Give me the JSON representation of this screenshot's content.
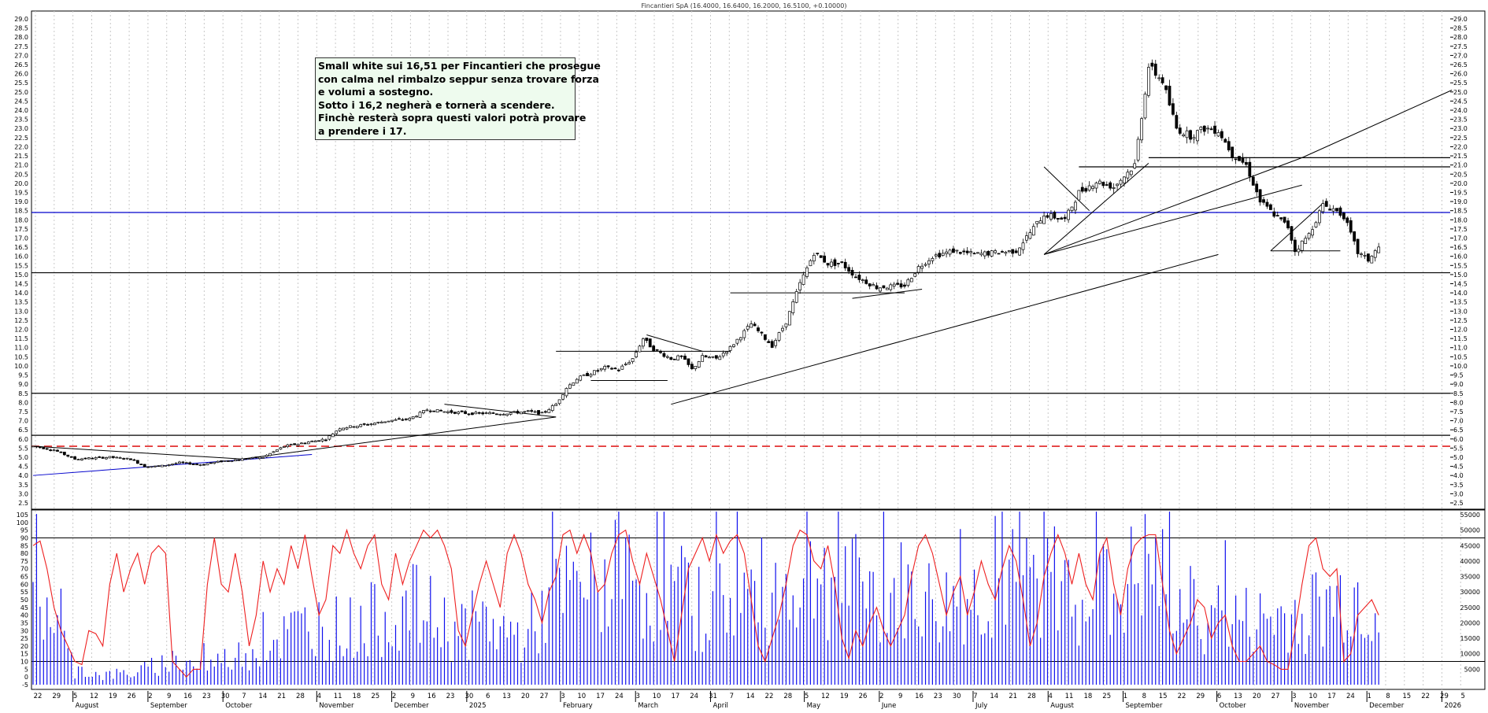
{
  "chart_data": {
    "type": "candlestick",
    "title": "Fincantieri SpA (16.4000, 16.6400, 16.2000, 16.5100, +0.10000)",
    "annotation_lines": [
      "Small white sui 16,51 per Fincantieri che prosegue",
      "con calma nel rimbalzo seppur senza trovare forza",
      "e volumi a sostegno.",
      "Sotto i 16,2 negherà e tornerà a scendere.",
      "Finchè resterà sopra questi valori potrà provare",
      "a prendere i 17."
    ],
    "price_axis": {
      "min": 2.5,
      "max": 29.0,
      "step": 0.5
    },
    "oscillator_axis": {
      "min": -5,
      "max": 105,
      "step": 5,
      "levels": [
        10,
        90
      ]
    },
    "volume_axis": {
      "min": 0,
      "max": 55000,
      "ticks": [
        5000,
        10000,
        15000,
        20000,
        25000,
        30000,
        35000,
        40000,
        45000,
        50000,
        55000
      ]
    },
    "x_day_labels": [
      "22",
      "29",
      "5",
      "12",
      "19",
      "26",
      "2",
      "9",
      "16",
      "23",
      "30",
      "7",
      "14",
      "21",
      "28",
      "4",
      "11",
      "18",
      "25",
      "2",
      "9",
      "16",
      "23",
      "30",
      "6",
      "13",
      "20",
      "27",
      "3",
      "10",
      "17",
      "24",
      "3",
      "10",
      "17",
      "24",
      "31",
      "7",
      "14",
      "22",
      "28",
      "5",
      "12",
      "19",
      "26",
      "2",
      "9",
      "16",
      "23",
      "30",
      "7",
      "14",
      "21",
      "28",
      "4",
      "11",
      "18",
      "25",
      "1",
      "8",
      "15",
      "22",
      "29",
      "6",
      "13",
      "20",
      "27",
      "3",
      "10",
      "17",
      "24",
      "1",
      "8",
      "15",
      "22",
      "29",
      "5"
    ],
    "x_month_labels": [
      "August",
      "September",
      "October",
      "November",
      "December",
      "2025",
      "February",
      "March",
      "April",
      "May",
      "June",
      "July",
      "August",
      "September",
      "October",
      "November",
      "December",
      "2026"
    ],
    "horizontal_levels": [
      {
        "price": 8.5,
        "color": "#000000"
      },
      {
        "price": 6.2,
        "color": "#000000"
      },
      {
        "price": 15.1,
        "color": "#000000"
      },
      {
        "price": 18.4,
        "color": "#0000cc"
      },
      {
        "price": 5.6,
        "color": "#e02020",
        "dashed": true
      },
      {
        "price": 20.9,
        "color": "#000000",
        "from_day": 300
      },
      {
        "price": 21.4,
        "color": "#000000",
        "from_day": 320
      }
    ],
    "segments": [
      {
        "d1": 0,
        "p1": 4.0,
        "d2": 80,
        "p2": 5.15,
        "color": "#0000cc"
      },
      {
        "d1": 0,
        "p1": 5.6,
        "d2": 60,
        "p2": 4.9,
        "color": "#000000"
      },
      {
        "d1": 60,
        "p1": 4.9,
        "d2": 150,
        "p2": 7.2,
        "color": "#000000"
      },
      {
        "d1": 118,
        "p1": 7.9,
        "d2": 150,
        "p2": 7.2,
        "color": "#000000"
      },
      {
        "d1": 160,
        "p1": 9.2,
        "d2": 182,
        "p2": 9.2,
        "color": "#000000"
      },
      {
        "d1": 150,
        "p1": 10.8,
        "d2": 200,
        "p2": 10.8,
        "color": "#000000"
      },
      {
        "d1": 176,
        "p1": 11.7,
        "d2": 192,
        "p2": 10.8,
        "color": "#000000"
      },
      {
        "d1": 183,
        "p1": 7.9,
        "d2": 340,
        "p2": 16.1,
        "color": "#000000"
      },
      {
        "d1": 290,
        "p1": 16.1,
        "d2": 320,
        "p2": 21.1,
        "color": "#000000"
      },
      {
        "d1": 290,
        "p1": 16.1,
        "d2": 364,
        "p2": 21.4,
        "color": "#000000"
      },
      {
        "d1": 290,
        "p1": 16.1,
        "d2": 364,
        "p2": 19.9,
        "color": "#000000"
      },
      {
        "d1": 364,
        "p1": 21.4,
        "d2": 407,
        "p2": 25.1,
        "color": "#000000"
      },
      {
        "d1": 290,
        "p1": 20.9,
        "d2": 303,
        "p2": 18.5,
        "color": "#000000"
      },
      {
        "d1": 235,
        "p1": 13.7,
        "d2": 255,
        "p2": 14.2,
        "color": "#000000"
      },
      {
        "d1": 206,
        "p1": 15.1,
        "d2": 235,
        "p2": 15.1,
        "color": "#000000"
      },
      {
        "d1": 200,
        "p1": 14.0,
        "d2": 250,
        "p2": 14.0,
        "color": "#000000"
      },
      {
        "d1": 355,
        "p1": 16.3,
        "d2": 375,
        "p2": 16.3,
        "color": "#000000"
      },
      {
        "d1": 355,
        "p1": 16.3,
        "d2": 370,
        "p2": 18.9,
        "color": "#000000"
      }
    ],
    "price_path": [
      [
        0,
        5.6
      ],
      [
        6,
        5.4
      ],
      [
        12,
        4.9
      ],
      [
        22,
        5.0
      ],
      [
        28,
        4.9
      ],
      [
        32,
        4.5
      ],
      [
        36,
        4.5
      ],
      [
        42,
        4.7
      ],
      [
        48,
        4.6
      ],
      [
        55,
        4.8
      ],
      [
        60,
        4.9
      ],
      [
        66,
        5.0
      ],
      [
        72,
        5.6
      ],
      [
        78,
        5.8
      ],
      [
        84,
        6.0
      ],
      [
        88,
        6.6
      ],
      [
        96,
        6.8
      ],
      [
        102,
        7.0
      ],
      [
        108,
        7.1
      ],
      [
        113,
        7.6
      ],
      [
        118,
        7.5
      ],
      [
        125,
        7.4
      ],
      [
        135,
        7.4
      ],
      [
        142,
        7.5
      ],
      [
        146,
        7.4
      ],
      [
        150,
        7.9
      ],
      [
        153,
        8.8
      ],
      [
        156,
        9.3
      ],
      [
        160,
        9.6
      ],
      [
        164,
        9.9
      ],
      [
        168,
        9.8
      ],
      [
        172,
        10.4
      ],
      [
        175,
        11.5
      ],
      [
        178,
        10.9
      ],
      [
        183,
        10.4
      ],
      [
        186,
        10.5
      ],
      [
        189,
        9.8
      ],
      [
        192,
        10.5
      ],
      [
        196,
        10.4
      ],
      [
        200,
        11.0
      ],
      [
        206,
        12.3
      ],
      [
        212,
        11.1
      ],
      [
        216,
        12.4
      ],
      [
        220,
        14.5
      ],
      [
        224,
        16.2
      ],
      [
        228,
        15.6
      ],
      [
        232,
        15.6
      ],
      [
        236,
        14.9
      ],
      [
        242,
        14.3
      ],
      [
        250,
        14.4
      ],
      [
        254,
        15.4
      ],
      [
        258,
        16.0
      ],
      [
        264,
        16.3
      ],
      [
        270,
        16.1
      ],
      [
        276,
        16.2
      ],
      [
        282,
        16.3
      ],
      [
        286,
        17.3
      ],
      [
        290,
        18.3
      ],
      [
        296,
        18.0
      ],
      [
        300,
        19.5
      ],
      [
        305,
        20.1
      ],
      [
        310,
        19.8
      ],
      [
        316,
        21.0
      ],
      [
        320,
        26.4
      ],
      [
        324,
        25.6
      ],
      [
        328,
        23.0
      ],
      [
        332,
        22.6
      ],
      [
        336,
        23.0
      ],
      [
        340,
        22.9
      ],
      [
        344,
        21.6
      ],
      [
        348,
        21.0
      ],
      [
        352,
        19.0
      ],
      [
        356,
        18.3
      ],
      [
        360,
        17.6
      ],
      [
        362,
        16.3
      ],
      [
        366,
        17.2
      ],
      [
        370,
        18.8
      ],
      [
        373,
        18.6
      ],
      [
        376,
        18.2
      ],
      [
        380,
        16.2
      ],
      [
        383,
        15.8
      ],
      [
        386,
        16.5
      ]
    ],
    "osc_path": [
      [
        0,
        85
      ],
      [
        2,
        88
      ],
      [
        4,
        70
      ],
      [
        6,
        45
      ],
      [
        8,
        30
      ],
      [
        10,
        20
      ],
      [
        12,
        10
      ],
      [
        14,
        8
      ],
      [
        16,
        30
      ],
      [
        18,
        28
      ],
      [
        20,
        20
      ],
      [
        22,
        60
      ],
      [
        24,
        80
      ],
      [
        26,
        55
      ],
      [
        28,
        70
      ],
      [
        30,
        80
      ],
      [
        32,
        60
      ],
      [
        34,
        80
      ],
      [
        36,
        85
      ],
      [
        38,
        80
      ],
      [
        40,
        10
      ],
      [
        42,
        5
      ],
      [
        44,
        0
      ],
      [
        46,
        5
      ],
      [
        48,
        5
      ],
      [
        50,
        60
      ],
      [
        52,
        90
      ],
      [
        54,
        60
      ],
      [
        56,
        55
      ],
      [
        58,
        80
      ],
      [
        60,
        55
      ],
      [
        62,
        20
      ],
      [
        64,
        40
      ],
      [
        66,
        75
      ],
      [
        68,
        55
      ],
      [
        70,
        70
      ],
      [
        72,
        60
      ],
      [
        74,
        85
      ],
      [
        76,
        70
      ],
      [
        78,
        92
      ],
      [
        80,
        65
      ],
      [
        82,
        40
      ],
      [
        84,
        50
      ],
      [
        86,
        85
      ],
      [
        88,
        80
      ],
      [
        90,
        95
      ],
      [
        92,
        80
      ],
      [
        94,
        70
      ],
      [
        96,
        85
      ],
      [
        98,
        92
      ],
      [
        100,
        60
      ],
      [
        102,
        50
      ],
      [
        104,
        80
      ],
      [
        106,
        60
      ],
      [
        108,
        75
      ],
      [
        110,
        85
      ],
      [
        112,
        95
      ],
      [
        114,
        90
      ],
      [
        116,
        95
      ],
      [
        118,
        85
      ],
      [
        120,
        70
      ],
      [
        122,
        30
      ],
      [
        124,
        20
      ],
      [
        126,
        40
      ],
      [
        128,
        60
      ],
      [
        130,
        75
      ],
      [
        132,
        60
      ],
      [
        134,
        45
      ],
      [
        136,
        80
      ],
      [
        138,
        92
      ],
      [
        140,
        80
      ],
      [
        142,
        60
      ],
      [
        144,
        50
      ],
      [
        146,
        35
      ],
      [
        148,
        55
      ],
      [
        150,
        65
      ],
      [
        152,
        92
      ],
      [
        154,
        95
      ],
      [
        156,
        80
      ],
      [
        158,
        92
      ],
      [
        160,
        80
      ],
      [
        162,
        55
      ],
      [
        164,
        60
      ],
      [
        166,
        80
      ],
      [
        168,
        92
      ],
      [
        170,
        95
      ],
      [
        172,
        75
      ],
      [
        174,
        60
      ],
      [
        176,
        80
      ],
      [
        178,
        65
      ],
      [
        180,
        50
      ],
      [
        182,
        30
      ],
      [
        184,
        10
      ],
      [
        186,
        40
      ],
      [
        188,
        70
      ],
      [
        190,
        80
      ],
      [
        192,
        90
      ],
      [
        194,
        75
      ],
      [
        196,
        92
      ],
      [
        198,
        80
      ],
      [
        200,
        88
      ],
      [
        202,
        92
      ],
      [
        204,
        80
      ],
      [
        206,
        50
      ],
      [
        208,
        20
      ],
      [
        210,
        10
      ],
      [
        212,
        25
      ],
      [
        214,
        40
      ],
      [
        216,
        60
      ],
      [
        218,
        85
      ],
      [
        220,
        95
      ],
      [
        222,
        92
      ],
      [
        224,
        75
      ],
      [
        226,
        70
      ],
      [
        228,
        85
      ],
      [
        230,
        60
      ],
      [
        232,
        25
      ],
      [
        234,
        12
      ],
      [
        236,
        30
      ],
      [
        238,
        20
      ],
      [
        240,
        35
      ],
      [
        242,
        45
      ],
      [
        244,
        30
      ],
      [
        246,
        20
      ],
      [
        248,
        30
      ],
      [
        250,
        40
      ],
      [
        252,
        65
      ],
      [
        254,
        85
      ],
      [
        256,
        92
      ],
      [
        258,
        80
      ],
      [
        260,
        60
      ],
      [
        262,
        40
      ],
      [
        264,
        55
      ],
      [
        266,
        65
      ],
      [
        268,
        40
      ],
      [
        270,
        55
      ],
      [
        272,
        75
      ],
      [
        274,
        60
      ],
      [
        276,
        50
      ],
      [
        278,
        70
      ],
      [
        280,
        85
      ],
      [
        282,
        75
      ],
      [
        284,
        50
      ],
      [
        286,
        20
      ],
      [
        288,
        35
      ],
      [
        290,
        65
      ],
      [
        292,
        80
      ],
      [
        294,
        92
      ],
      [
        296,
        80
      ],
      [
        298,
        60
      ],
      [
        300,
        80
      ],
      [
        302,
        60
      ],
      [
        304,
        50
      ],
      [
        306,
        80
      ],
      [
        308,
        90
      ],
      [
        310,
        60
      ],
      [
        312,
        40
      ],
      [
        314,
        70
      ],
      [
        316,
        85
      ],
      [
        318,
        90
      ],
      [
        320,
        92
      ],
      [
        322,
        92
      ],
      [
        324,
        60
      ],
      [
        326,
        30
      ],
      [
        328,
        15
      ],
      [
        330,
        25
      ],
      [
        332,
        35
      ],
      [
        334,
        50
      ],
      [
        336,
        45
      ],
      [
        338,
        25
      ],
      [
        340,
        35
      ],
      [
        342,
        40
      ],
      [
        344,
        20
      ],
      [
        346,
        10
      ],
      [
        348,
        10
      ],
      [
        350,
        15
      ],
      [
        352,
        20
      ],
      [
        354,
        10
      ],
      [
        356,
        8
      ],
      [
        358,
        5
      ],
      [
        360,
        5
      ],
      [
        362,
        30
      ],
      [
        364,
        60
      ],
      [
        366,
        85
      ],
      [
        368,
        90
      ],
      [
        370,
        70
      ],
      [
        372,
        65
      ],
      [
        374,
        70
      ],
      [
        376,
        10
      ],
      [
        378,
        15
      ],
      [
        380,
        40
      ],
      [
        382,
        45
      ],
      [
        384,
        50
      ],
      [
        386,
        40
      ]
    ],
    "vol_path": [
      [
        0,
        22
      ],
      [
        4,
        28
      ],
      [
        8,
        15
      ],
      [
        12,
        5
      ],
      [
        20,
        3
      ],
      [
        30,
        4
      ],
      [
        40,
        8
      ],
      [
        50,
        6
      ],
      [
        60,
        10
      ],
      [
        70,
        15
      ],
      [
        80,
        20
      ],
      [
        90,
        18
      ],
      [
        100,
        22
      ],
      [
        110,
        25
      ],
      [
        120,
        18
      ],
      [
        130,
        20
      ],
      [
        140,
        15
      ],
      [
        150,
        28
      ],
      [
        160,
        32
      ],
      [
        170,
        35
      ],
      [
        180,
        30
      ],
      [
        190,
        25
      ],
      [
        200,
        28
      ],
      [
        210,
        30
      ],
      [
        220,
        33
      ],
      [
        230,
        35
      ],
      [
        240,
        28
      ],
      [
        250,
        30
      ],
      [
        260,
        25
      ],
      [
        270,
        28
      ],
      [
        280,
        32
      ],
      [
        290,
        35
      ],
      [
        300,
        30
      ],
      [
        310,
        28
      ],
      [
        320,
        38
      ],
      [
        330,
        25
      ],
      [
        340,
        22
      ],
      [
        350,
        20
      ],
      [
        360,
        22
      ],
      [
        370,
        25
      ],
      [
        380,
        30
      ],
      [
        386,
        20
      ]
    ]
  }
}
